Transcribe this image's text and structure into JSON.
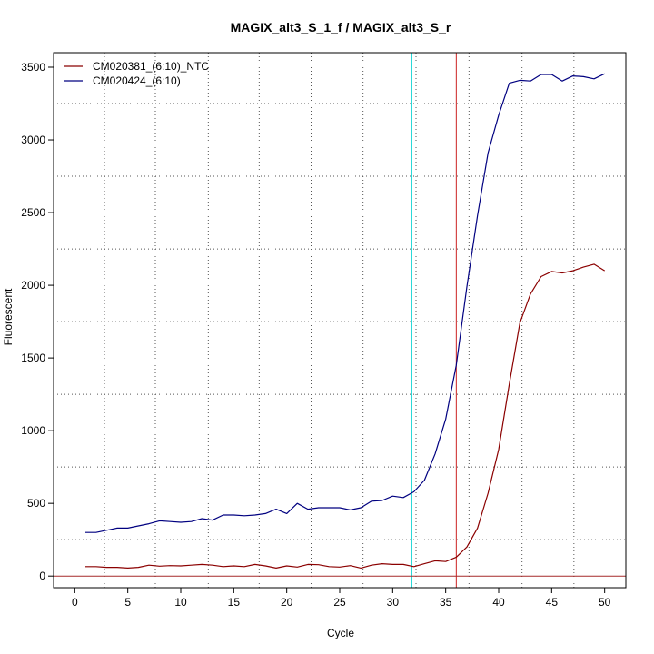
{
  "chart_data": {
    "type": "line",
    "title": "MAGIX_alt3_S_1_f / MAGIX_alt3_S_r",
    "xlabel": "Cycle",
    "ylabel": "Fluorescent",
    "xlim": [
      -2,
      52
    ],
    "ylim": [
      -80,
      3600
    ],
    "xticks": [
      0,
      5,
      10,
      15,
      20,
      25,
      30,
      35,
      40,
      45,
      50
    ],
    "yticks": [
      0,
      500,
      1000,
      1500,
      2000,
      2500,
      3000,
      3500
    ],
    "grid": true,
    "grid_x_positions": [
      2.8,
      7.6,
      12.6,
      17.4,
      22.3,
      27.2,
      32.2,
      37.2,
      42.2,
      47.1
    ],
    "grid_y_positions": [
      250,
      750,
      1250,
      1750,
      2250,
      2750,
      3250
    ],
    "legend_position": "top-left",
    "reference_lines": [
      {
        "orientation": "vertical",
        "x": 31.8,
        "color": "#00d0d0"
      },
      {
        "orientation": "vertical",
        "x": 36.0,
        "color": "#cc2222"
      },
      {
        "orientation": "horizontal",
        "y": 0,
        "color": "#a52a2a"
      }
    ],
    "x": [
      1,
      2,
      3,
      4,
      5,
      6,
      7,
      8,
      9,
      10,
      11,
      12,
      13,
      14,
      15,
      16,
      17,
      18,
      19,
      20,
      21,
      22,
      23,
      24,
      25,
      26,
      27,
      28,
      29,
      30,
      31,
      32,
      33,
      34,
      35,
      36,
      37,
      38,
      39,
      40,
      41,
      42,
      43,
      44,
      45,
      46,
      47,
      48,
      49,
      50
    ],
    "series": [
      {
        "name": "CM020381_(6:10)_NTC",
        "color": "#8b0000",
        "values": [
          65,
          65,
          60,
          60,
          55,
          60,
          75,
          68,
          72,
          70,
          75,
          80,
          75,
          65,
          70,
          65,
          80,
          70,
          55,
          70,
          62,
          80,
          78,
          65,
          62,
          72,
          55,
          75,
          85,
          80,
          80,
          65,
          85,
          105,
          100,
          130,
          200,
          330,
          570,
          870,
          1320,
          1740,
          1940,
          2060,
          2095,
          2085,
          2100,
          2125,
          2145,
          2100
        ]
      },
      {
        "name": "CM020424_(6:10)",
        "color": "#000080",
        "values": [
          300,
          300,
          315,
          330,
          330,
          345,
          360,
          380,
          375,
          370,
          375,
          395,
          385,
          420,
          420,
          415,
          420,
          430,
          460,
          430,
          500,
          460,
          470,
          470,
          470,
          455,
          470,
          515,
          520,
          550,
          540,
          580,
          660,
          840,
          1080,
          1450,
          1990,
          2480,
          2910,
          3170,
          3390,
          3410,
          3405,
          3450,
          3450,
          3405,
          3440,
          3435,
          3420,
          3455
        ]
      }
    ]
  }
}
